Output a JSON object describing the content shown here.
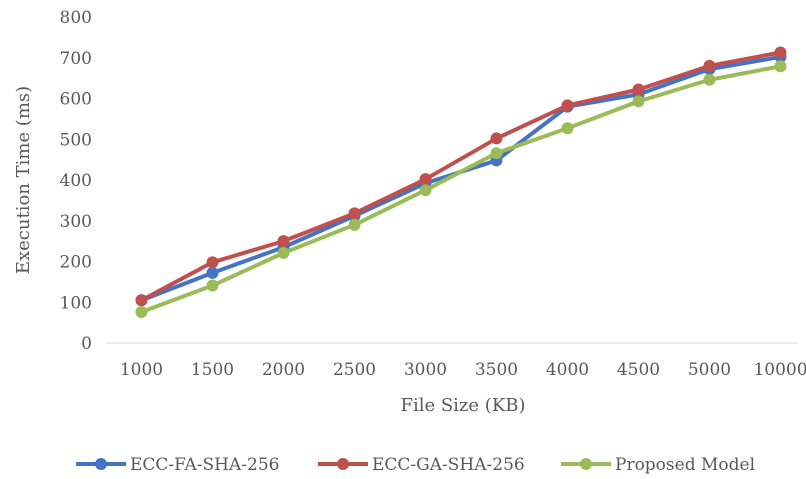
{
  "chart_data": {
    "type": "line",
    "title": "",
    "xlabel": "File Size (KB)",
    "ylabel": "Execution Time (ms)",
    "categories": [
      "1000",
      "1500",
      "2000",
      "2500",
      "3000",
      "3500",
      "4000",
      "4500",
      "5000",
      "10000"
    ],
    "ylim": [
      0,
      800
    ],
    "yticks": [
      0,
      100,
      200,
      300,
      400,
      500,
      600,
      700,
      800
    ],
    "grid": false,
    "legend_position": "bottom",
    "series": [
      {
        "name": "ECC-FA-SHA-256",
        "color": "#4472C4",
        "values": [
          105,
          172,
          235,
          312,
          392,
          448,
          580,
          610,
          672,
          702
        ]
      },
      {
        "name": "ECC-GA-SHA-256",
        "color": "#C0504D",
        "values": [
          105,
          198,
          250,
          318,
          402,
          502,
          583,
          622,
          680,
          713
        ]
      },
      {
        "name": "Proposed Model",
        "color": "#9BBB59",
        "values": [
          76,
          141,
          221,
          290,
          375,
          466,
          527,
          593,
          646,
          679
        ]
      }
    ]
  }
}
